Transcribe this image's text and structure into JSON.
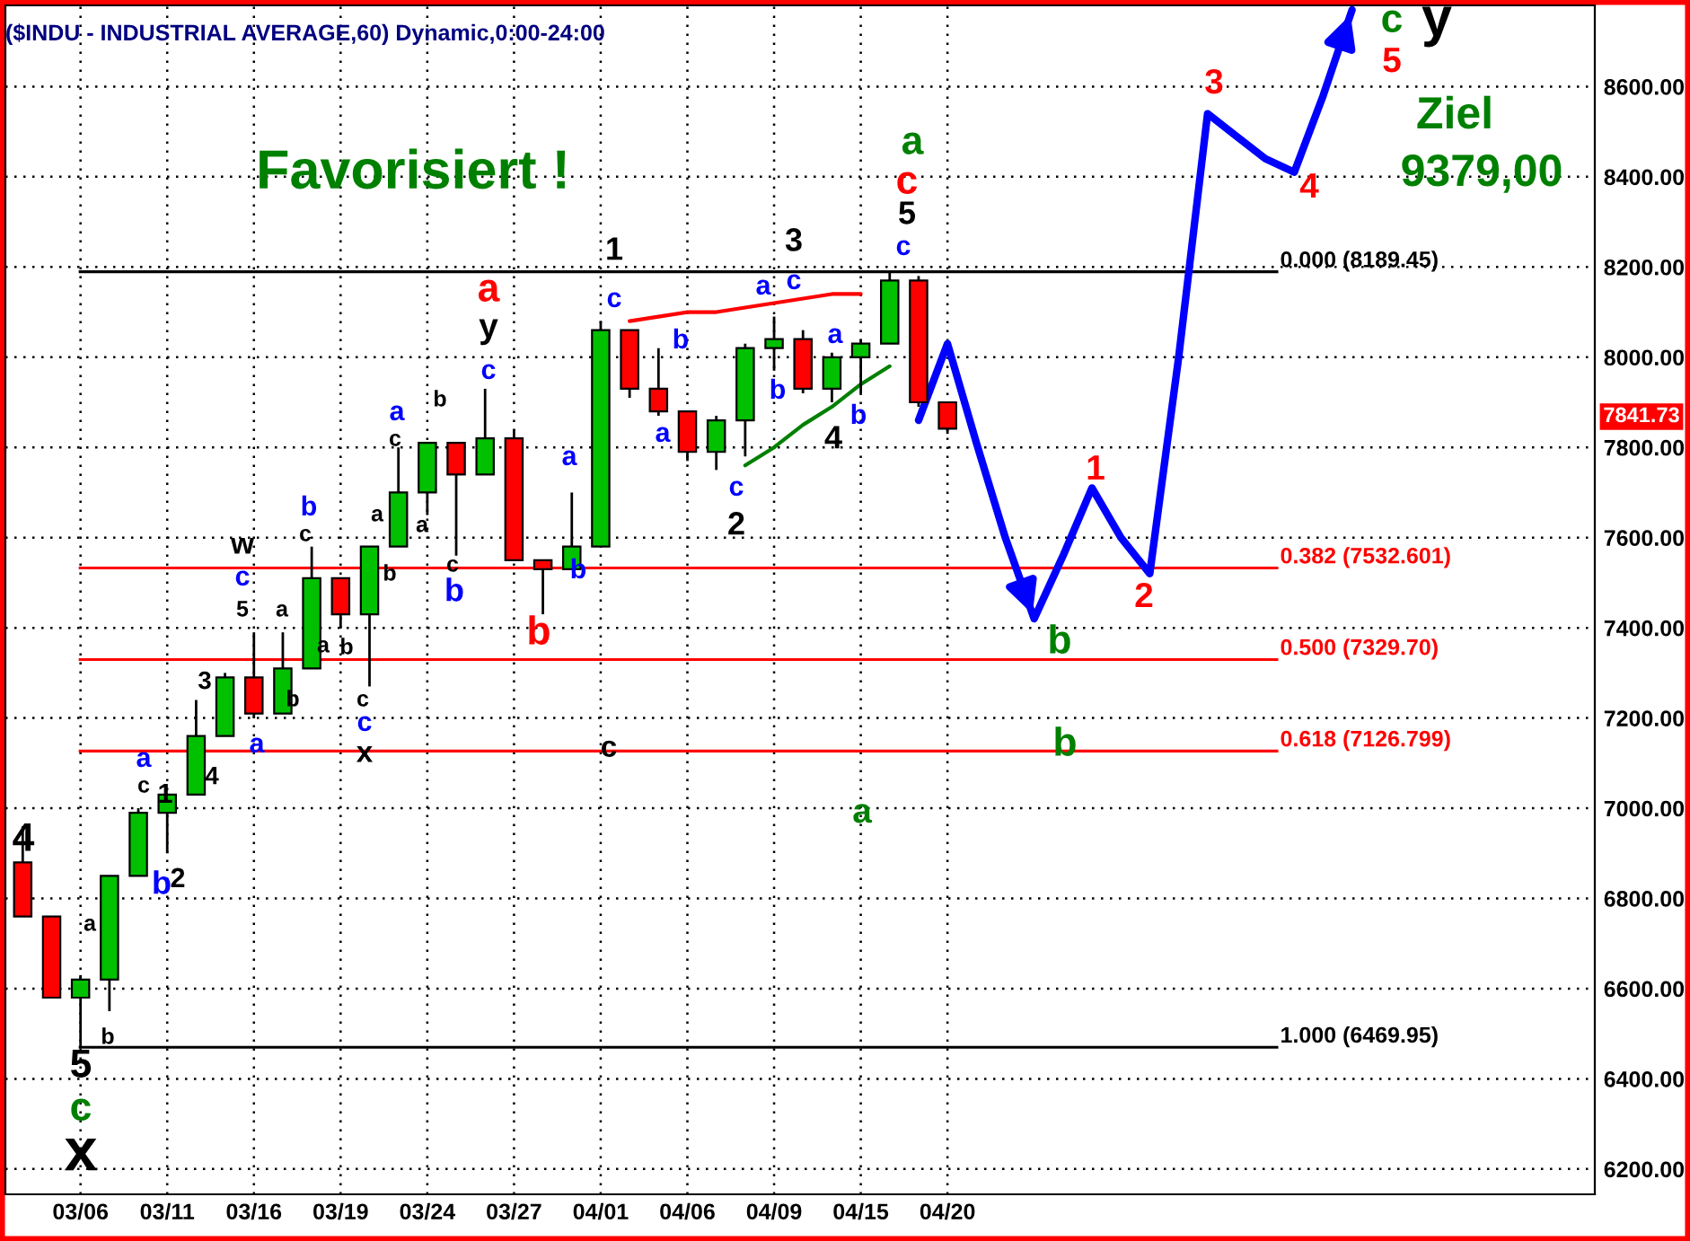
{
  "chart_data": {
    "type": "candlestick",
    "title": "($INDU - INDUSTRIAL AVERAGE,60) Dynamic,0:00-24:00",
    "categories": [
      null,
      null,
      "03/06",
      null,
      null,
      "03/11",
      null,
      null,
      "03/16",
      null,
      null,
      "03/19",
      null,
      null,
      "03/24",
      null,
      null,
      "03/27",
      null,
      null,
      "04/01",
      null,
      null,
      "04/06",
      null,
      null,
      "04/09",
      null,
      null,
      "04/15",
      null,
      null,
      "04/20",
      null,
      null,
      null,
      null,
      null,
      null,
      null,
      null,
      null,
      null,
      null,
      null,
      null,
      null,
      null,
      null,
      null,
      null,
      null,
      null,
      null,
      null
    ],
    "ylim": [
      6144,
      8780
    ],
    "yticks": [
      {
        "value": 6200,
        "label": "6200.00"
      },
      {
        "value": 6400,
        "label": "6400.00"
      },
      {
        "value": 6600,
        "label": "6600.00"
      },
      {
        "value": 6800,
        "label": "6800.00"
      },
      {
        "value": 7000,
        "label": "7000.00"
      },
      {
        "value": 7200,
        "label": "7200.00"
      },
      {
        "value": 7400,
        "label": "7400.00"
      },
      {
        "value": 7600,
        "label": "7600.00"
      },
      {
        "value": 7800,
        "label": "7800.00"
      },
      {
        "value": 8000,
        "label": "8000.00"
      },
      {
        "value": 8200,
        "label": "8200.00"
      },
      {
        "value": 8400,
        "label": "8400.00"
      },
      {
        "value": 8600,
        "label": "8600.00"
      }
    ],
    "grid": true,
    "legend": false,
    "ohlc": [
      [
        6880,
        6960,
        6760,
        6760
      ],
      [
        6760,
        6760,
        6580,
        6580
      ],
      [
        6580,
        6630,
        6470,
        6620
      ],
      [
        6620,
        6850,
        6550,
        6850
      ],
      [
        6850,
        7000,
        6850,
        6990
      ],
      [
        6990,
        7030,
        6900,
        7030
      ],
      [
        7030,
        7240,
        7030,
        7160
      ],
      [
        7160,
        7300,
        7160,
        7290
      ],
      [
        7290,
        7390,
        7200,
        7210
      ],
      [
        7210,
        7390,
        7210,
        7310
      ],
      [
        7310,
        7580,
        7310,
        7510
      ],
      [
        7510,
        7510,
        7400,
        7430
      ],
      [
        7430,
        7580,
        7270,
        7580
      ],
      [
        7580,
        7800,
        7580,
        7700
      ],
      [
        7700,
        7810,
        7650,
        7810
      ],
      [
        7810,
        7810,
        7560,
        7740
      ],
      [
        7740,
        7930,
        7740,
        7820
      ],
      [
        7820,
        7840,
        7550,
        7550
      ],
      [
        7550,
        7550,
        7430,
        7530
      ],
      [
        7530,
        7700,
        7530,
        7580
      ],
      [
        7580,
        8080,
        7580,
        8060
      ],
      [
        8060,
        8060,
        7910,
        7930
      ],
      [
        7930,
        8020,
        7870,
        7880
      ],
      [
        7880,
        7880,
        7770,
        7790
      ],
      [
        7790,
        7870,
        7750,
        7860
      ],
      [
        7860,
        8030,
        7780,
        8020
      ],
      [
        8020,
        8090,
        7970,
        8040
      ],
      [
        8040,
        8060,
        7920,
        7930
      ],
      [
        7930,
        8010,
        7900,
        8000
      ],
      [
        8000,
        8040,
        7920,
        8030
      ],
      [
        8030,
        8190,
        8030,
        8170
      ],
      [
        8170,
        8180,
        7890,
        7900
      ],
      [
        7900,
        7900,
        7830,
        7841.73
      ],
      null,
      null,
      null,
      null,
      null,
      null,
      null,
      null,
      null,
      null,
      null,
      null,
      null,
      null,
      null,
      null,
      null,
      null,
      null,
      null,
      null,
      null
    ],
    "series": [
      {
        "type": "line",
        "color": "#ff0000",
        "values": [
          null,
          null,
          null,
          null,
          null,
          null,
          null,
          null,
          null,
          null,
          null,
          null,
          null,
          null,
          null,
          null,
          null,
          null,
          null,
          null,
          null,
          8080,
          8090,
          8100,
          8100,
          8110,
          8120,
          8130,
          8140,
          8140,
          null,
          null,
          null,
          null,
          null,
          null,
          null,
          null,
          null,
          null,
          null,
          null,
          null,
          null,
          null,
          null,
          null,
          null,
          null,
          null,
          null,
          null,
          null,
          null,
          null
        ]
      },
      {
        "type": "line",
        "color": "#008000",
        "values": [
          null,
          null,
          null,
          null,
          null,
          null,
          null,
          null,
          null,
          null,
          null,
          null,
          null,
          null,
          null,
          null,
          null,
          null,
          null,
          null,
          null,
          null,
          null,
          null,
          null,
          7760,
          7800,
          7850,
          7890,
          7940,
          7980,
          null,
          null,
          null,
          null,
          null,
          null,
          null,
          null,
          null,
          null,
          null,
          null,
          null,
          null,
          null,
          null,
          null,
          null,
          null,
          null,
          null,
          null,
          null,
          null
        ]
      },
      {
        "type": "line",
        "color": "#0000ff",
        "values": [
          null,
          null,
          null,
          null,
          null,
          null,
          null,
          null,
          null,
          null,
          null,
          null,
          null,
          null,
          null,
          null,
          null,
          null,
          null,
          null,
          null,
          null,
          null,
          null,
          null,
          null,
          null,
          null,
          null,
          null,
          null,
          7860,
          8030,
          7810,
          7600,
          7420,
          7560,
          7710,
          7600,
          7520,
          8000,
          8540,
          8490,
          8440,
          8410,
          8580,
          8770,
          null,
          null,
          null,
          null,
          null,
          null,
          null,
          null
        ]
      }
    ],
    "ref_lines": [
      {
        "axis": "y",
        "value": 8189.45,
        "label": "0.000 (8189.45)",
        "color": "#000000"
      },
      {
        "axis": "y",
        "value": 7532.601,
        "label": "0.382 (7532.601)",
        "color": "#ff0000"
      },
      {
        "axis": "y",
        "value": 7329.7,
        "label": "0.500 (7329.70)",
        "color": "#ff0000"
      },
      {
        "axis": "y",
        "value": 7126.799,
        "label": "0.618 (7126.799)",
        "color": "#ff0000"
      },
      {
        "axis": "y",
        "value": 6469.95,
        "label": "1.000 (6469.95)",
        "color": "#000000"
      }
    ],
    "annotations": [
      "Favorisiert !",
      "4",
      "5",
      "c",
      "x",
      "a",
      "b",
      "c",
      "a",
      "1",
      "b",
      "2",
      "3",
      "4",
      "a",
      "5",
      "c",
      "w",
      "a",
      "b",
      "c",
      "b",
      "a",
      "b",
      "a",
      "b",
      "c",
      "c",
      "x",
      "c",
      "a",
      "a",
      "b",
      "c",
      "b",
      "c",
      "y",
      "a",
      "b",
      "a",
      "b",
      "1",
      "c",
      "a",
      "b",
      "c",
      "2",
      "a",
      "3",
      "c",
      "b",
      "a",
      "b",
      "4",
      "c",
      "5",
      "c",
      "a",
      "c",
      "a",
      "b",
      "b",
      "1",
      "2",
      "3",
      "4",
      "5",
      "c",
      "y",
      "Ziel",
      "9379,00",
      "7841.73"
    ]
  }
}
